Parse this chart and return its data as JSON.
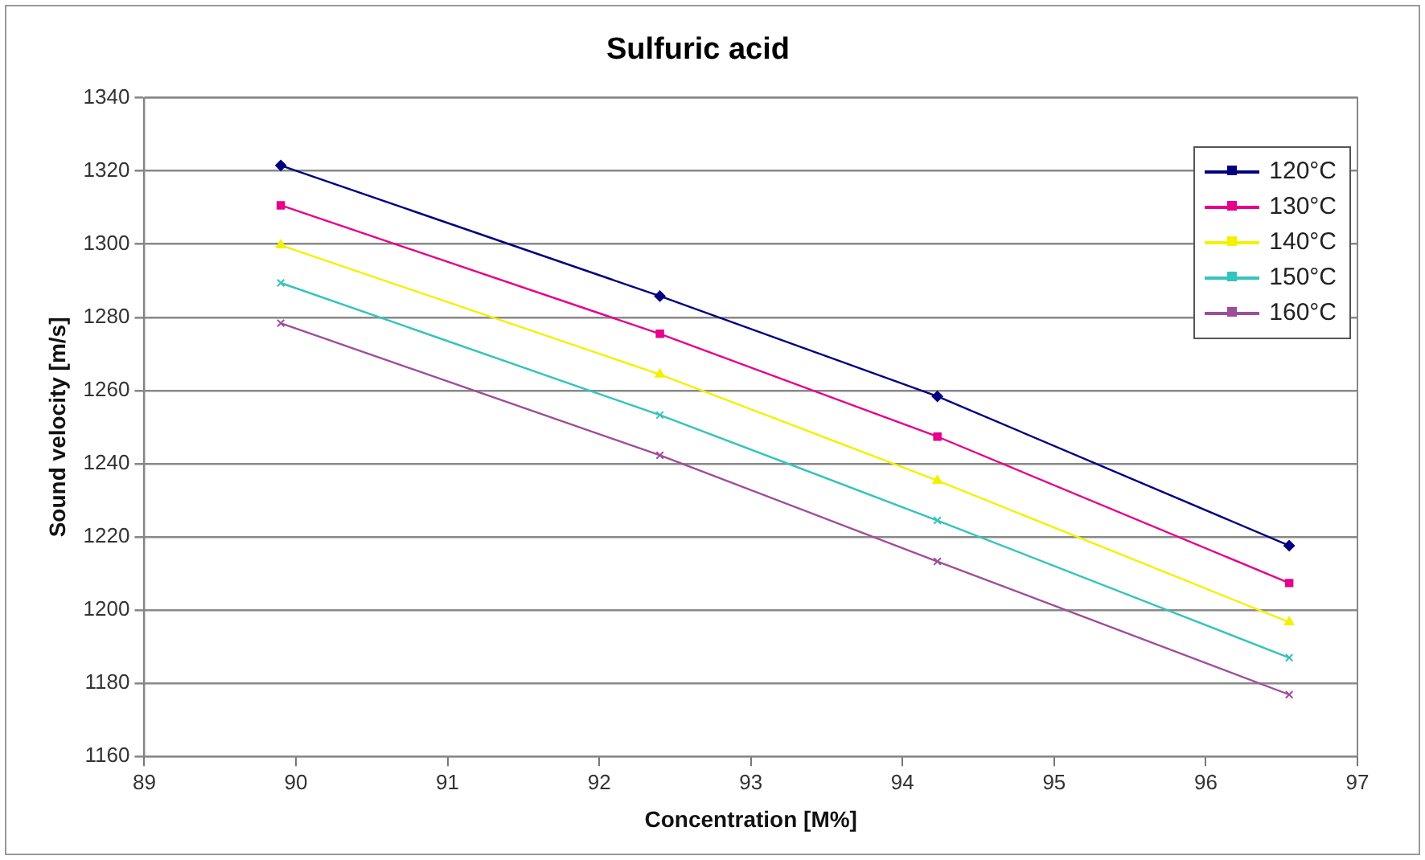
{
  "chart_data": {
    "type": "line",
    "title": "Sulfuric acid",
    "xlabel": "Concentration [M%]",
    "ylabel": "Sound velocity [m/s]",
    "x": [
      89.9,
      92.4,
      94.23,
      96.55
    ],
    "series": [
      {
        "name": "120°C",
        "color": "#000080",
        "marker": "diamond",
        "values": [
          1321.5,
          1285.8,
          1258.4,
          1217.6
        ]
      },
      {
        "name": "130°C",
        "color": "#e6008c",
        "marker": "square",
        "values": [
          1310.6,
          1275.5,
          1247.4,
          1207.4
        ]
      },
      {
        "name": "140°C",
        "color": "#f2f200",
        "marker": "triangle",
        "values": [
          1299.7,
          1264.4,
          1235.4,
          1196.7
        ]
      },
      {
        "name": "150°C",
        "color": "#33c4bc",
        "marker": "cross",
        "values": [
          1289.4,
          1253.3,
          1224.5,
          1187
        ]
      },
      {
        "name": "160°C",
        "color": "#a04c9c",
        "marker": "cross",
        "values": [
          1278.4,
          1242.3,
          1213.3,
          1176.9
        ]
      }
    ],
    "xlim": [
      89,
      97
    ],
    "xticks": [
      89,
      90,
      91,
      92,
      93,
      94,
      95,
      96,
      97
    ],
    "ylim": [
      1160,
      1340
    ],
    "yticks": [
      1160,
      1180,
      1200,
      1220,
      1240,
      1260,
      1280,
      1300,
      1320,
      1340
    ],
    "grid": "y",
    "legend": "top right",
    "line_style": "solid"
  }
}
